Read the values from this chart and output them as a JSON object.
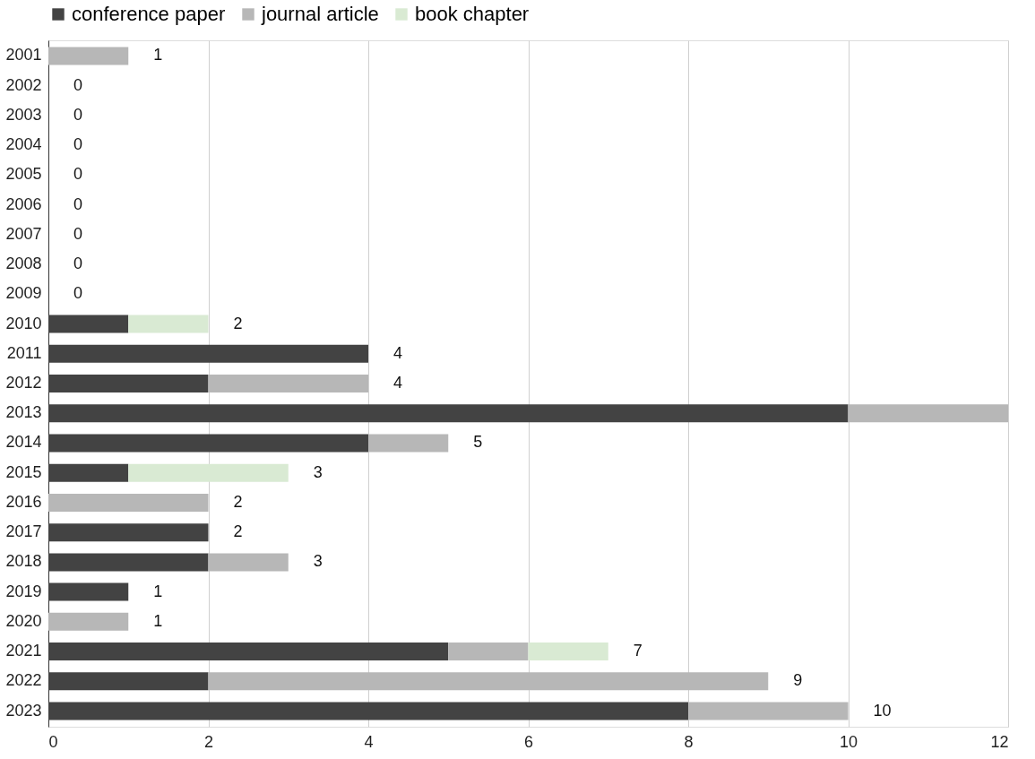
{
  "chart_data": {
    "type": "bar",
    "orientation": "horizontal",
    "stacked": true,
    "categories": [
      "2001",
      "2002",
      "2003",
      "2004",
      "2005",
      "2006",
      "2007",
      "2008",
      "2009",
      "2010",
      "2011",
      "2012",
      "2013",
      "2014",
      "2015",
      "2016",
      "2017",
      "2018",
      "2019",
      "2020",
      "2021",
      "2022",
      "2023"
    ],
    "series": [
      {
        "name": "conference paper",
        "color": "#434343",
        "values": [
          0,
          0,
          0,
          0,
          0,
          0,
          0,
          0,
          0,
          1,
          4,
          2,
          10,
          4,
          1,
          0,
          2,
          2,
          1,
          0,
          5,
          2,
          8
        ]
      },
      {
        "name": "journal article",
        "color": "#b7b7b7",
        "values": [
          1,
          0,
          0,
          0,
          0,
          0,
          0,
          0,
          0,
          0,
          0,
          2,
          2,
          1,
          0,
          2,
          0,
          1,
          0,
          1,
          1,
          7,
          2
        ]
      },
      {
        "name": "book chapter",
        "color": "#d9ead3",
        "values": [
          0,
          0,
          0,
          0,
          0,
          0,
          0,
          0,
          0,
          1,
          0,
          0,
          0,
          0,
          2,
          0,
          0,
          0,
          0,
          0,
          1,
          0,
          0
        ]
      }
    ],
    "totals": [
      "1",
      "0",
      "0",
      "0",
      "0",
      "0",
      "0",
      "0",
      "0",
      "2",
      "4",
      "4",
      null,
      "5",
      "3",
      "2",
      "2",
      "3",
      "1",
      "1",
      "7",
      "9",
      "10"
    ],
    "xlim": [
      0,
      12
    ],
    "xticks": [
      0,
      2,
      4,
      6,
      8,
      10,
      12
    ],
    "grid": "x",
    "legend": "top"
  }
}
